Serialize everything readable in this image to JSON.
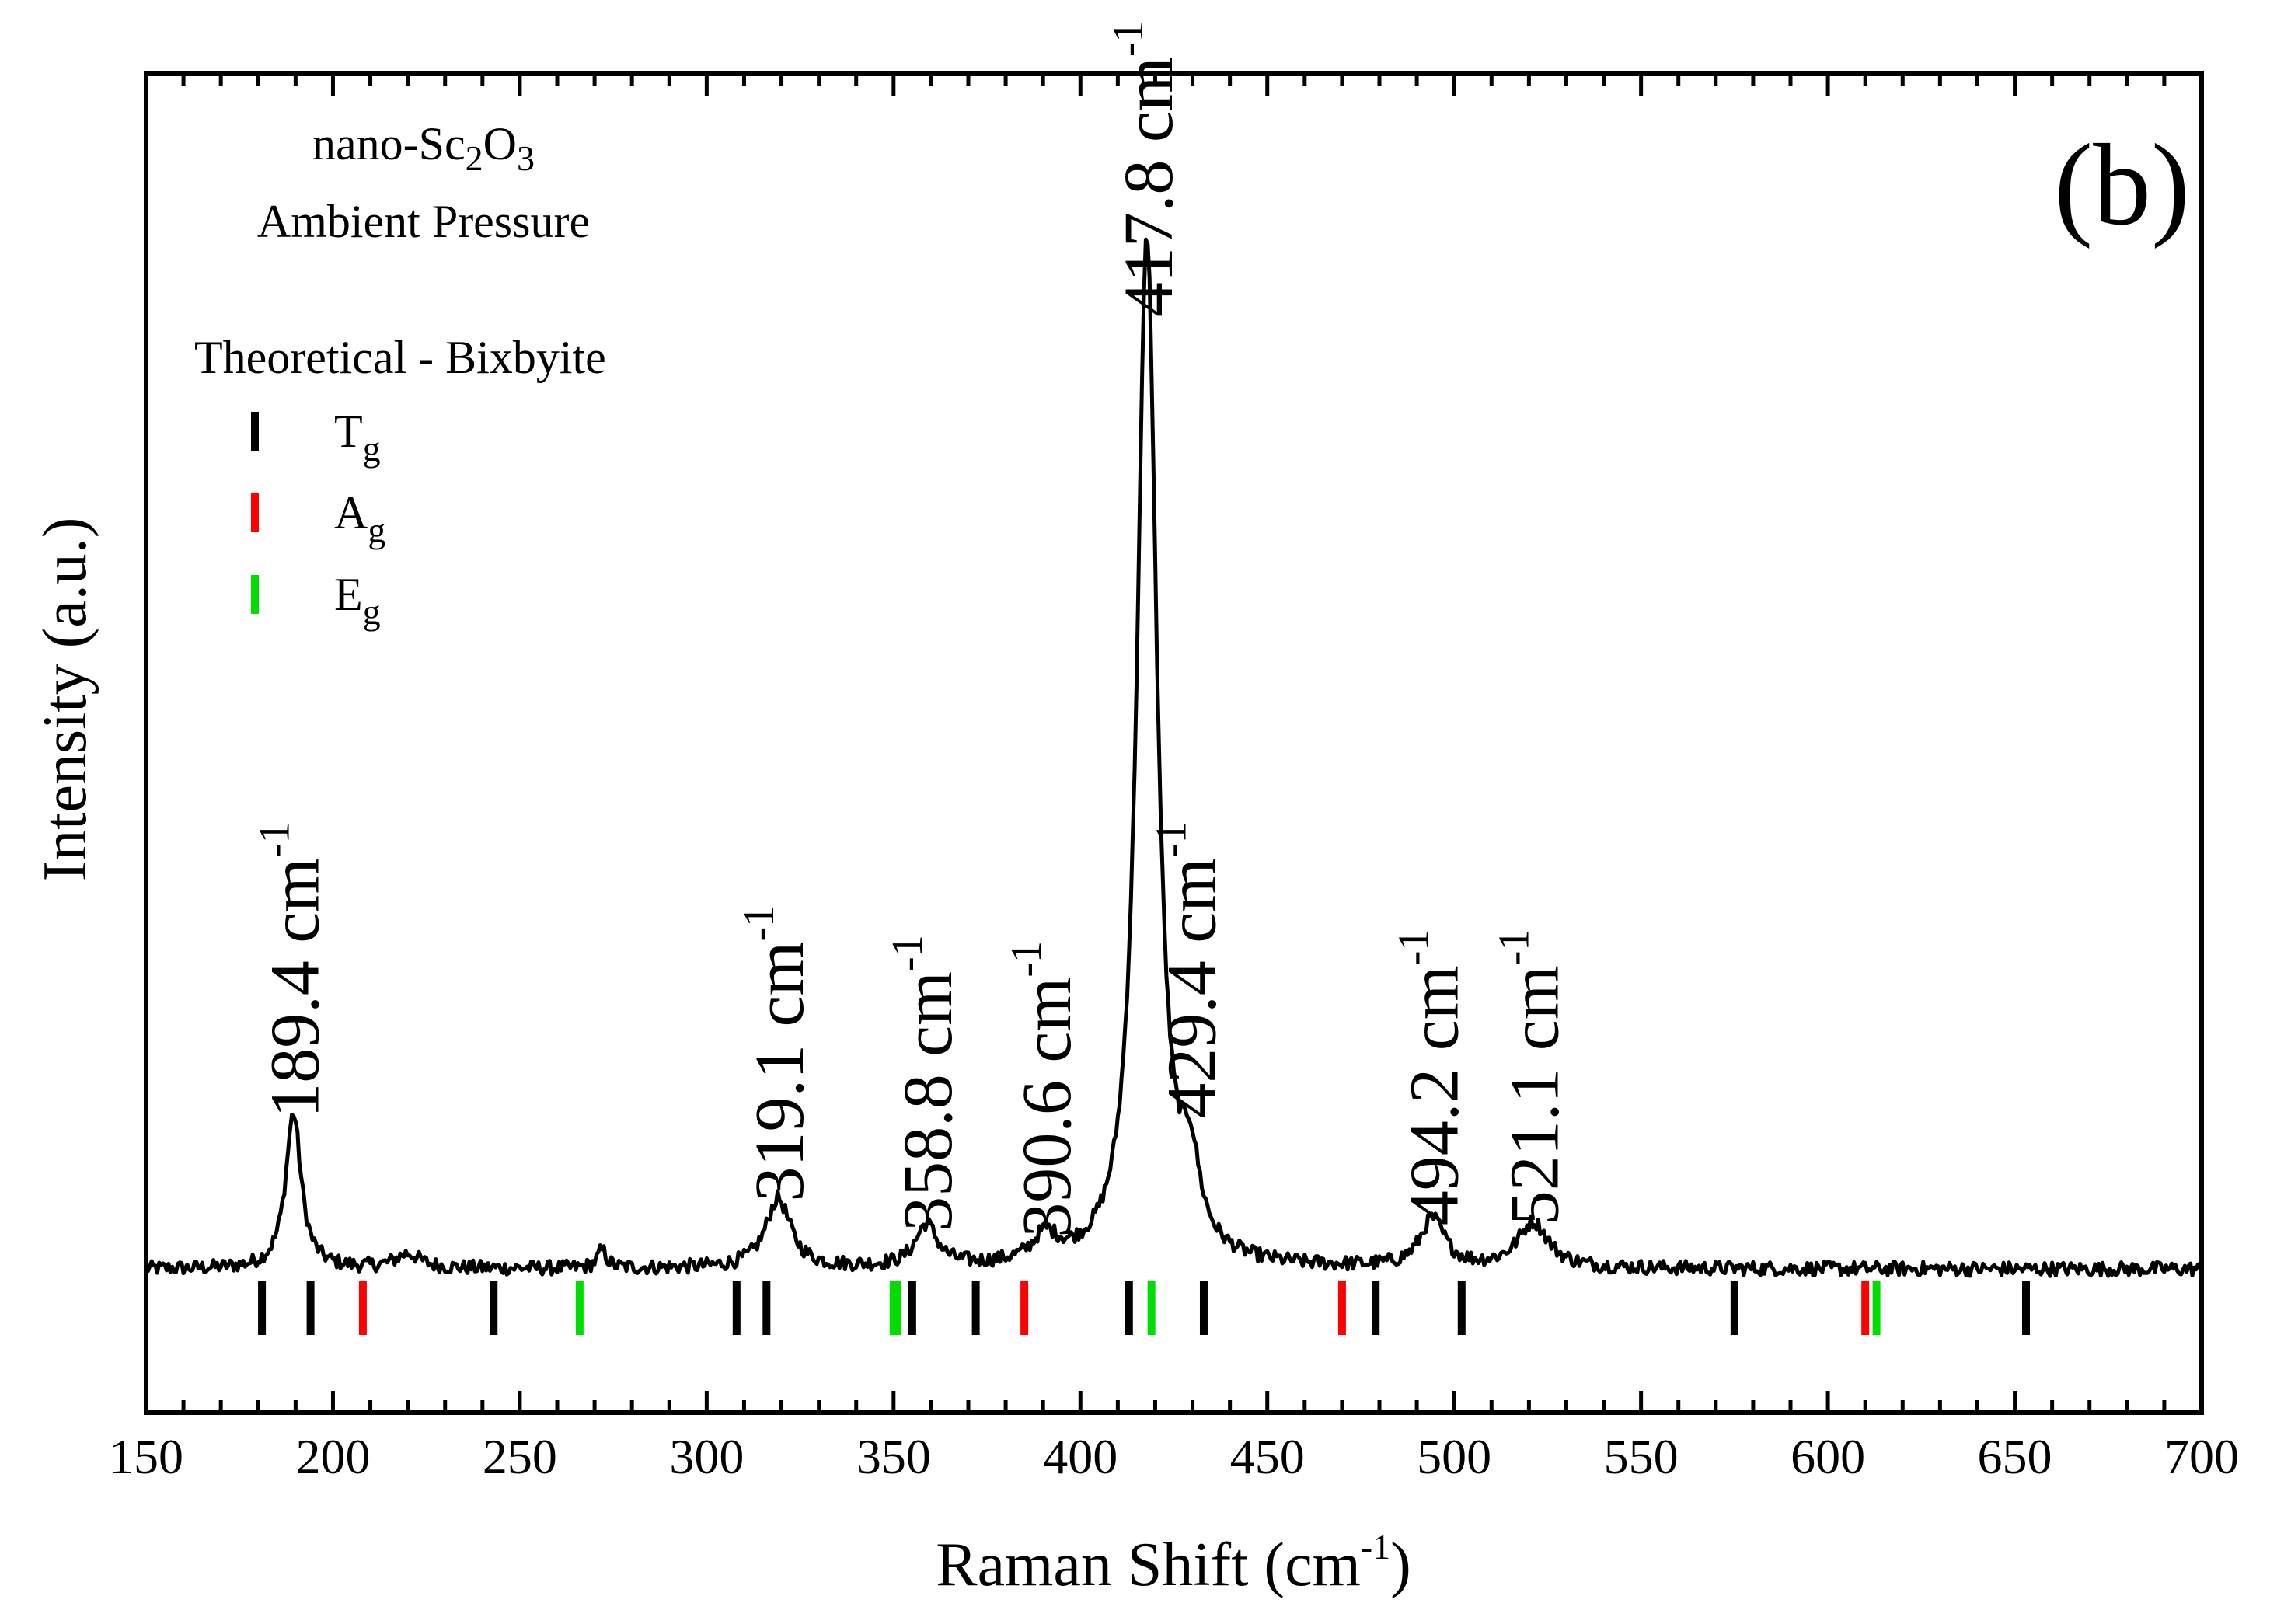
{
  "chart_data": {
    "type": "line",
    "panel_label": "(b)",
    "xlabel": {
      "text": "Raman Shift (cm",
      "sup": "-1",
      "close": ")"
    },
    "ylabel": "Intensity (a.u.)",
    "xlim": [
      150,
      700
    ],
    "ylim": [
      -0.12,
      1.0
    ],
    "x_ticks": [
      150,
      200,
      250,
      300,
      350,
      400,
      450,
      500,
      550,
      600,
      650,
      700
    ],
    "x_minor_step": 10,
    "sample": {
      "prefix": "nano-Sc",
      "sub1": "2",
      "mid": "O",
      "sub2": "3"
    },
    "condition": "Ambient Pressure",
    "legend_title": "Theoretical - Bixbyite",
    "legend": [
      {
        "base": "T",
        "sub": "g",
        "color": "#000000"
      },
      {
        "base": "A",
        "sub": "g",
        "color": "#ff0000"
      },
      {
        "base": "E",
        "sub": "g",
        "color": "#00dd00"
      }
    ],
    "spectrum": {
      "baseline": 0.0,
      "peaks": [
        {
          "center": 189.4,
          "height": 0.13,
          "width": 2.5
        },
        {
          "center": 220.0,
          "height": 0.012,
          "width": 4
        },
        {
          "center": 272.0,
          "height": 0.015,
          "width": 1.5
        },
        {
          "center": 319.1,
          "height": 0.058,
          "width": 4
        },
        {
          "center": 358.8,
          "height": 0.035,
          "width": 3.5
        },
        {
          "center": 390.6,
          "height": 0.022,
          "width": 4
        },
        {
          "center": 417.8,
          "height": 0.86,
          "width": 3.2
        },
        {
          "center": 429.4,
          "height": 0.065,
          "width": 3
        },
        {
          "center": 494.2,
          "height": 0.04,
          "width": 4
        },
        {
          "center": 521.1,
          "height": 0.038,
          "width": 5
        }
      ]
    },
    "theoretical_modes": [
      {
        "x": 181,
        "type": "Tg"
      },
      {
        "x": 194,
        "type": "Tg"
      },
      {
        "x": 208,
        "type": "Ag"
      },
      {
        "x": 243,
        "type": "Tg"
      },
      {
        "x": 266,
        "type": "Eg"
      },
      {
        "x": 308,
        "type": "Tg"
      },
      {
        "x": 316,
        "type": "Tg"
      },
      {
        "x": 350,
        "type": "Eg"
      },
      {
        "x": 351,
        "type": "Eg"
      },
      {
        "x": 355,
        "type": "Tg"
      },
      {
        "x": 372,
        "type": "Tg"
      },
      {
        "x": 385,
        "type": "Ag"
      },
      {
        "x": 413,
        "type": "Tg"
      },
      {
        "x": 419,
        "type": "Eg"
      },
      {
        "x": 433,
        "type": "Tg"
      },
      {
        "x": 470,
        "type": "Ag"
      },
      {
        "x": 479,
        "type": "Tg"
      },
      {
        "x": 502,
        "type": "Tg"
      },
      {
        "x": 575,
        "type": "Tg"
      },
      {
        "x": 610,
        "type": "Ag"
      },
      {
        "x": 613,
        "type": "Eg"
      },
      {
        "x": 653,
        "type": "Tg"
      }
    ],
    "mode_colors": {
      "Tg": "#000000",
      "Ag": "#ff0000",
      "Eg": "#00dd00"
    },
    "peak_labels": [
      {
        "x": 189.4,
        "y": 0.12,
        "value": "189.4 cm",
        "sup": "-1"
      },
      {
        "x": 319.1,
        "y": 0.05,
        "value": "319.1 cm",
        "sup": "-1"
      },
      {
        "x": 358.8,
        "y": 0.025,
        "value": "358.8 cm",
        "sup": "-1"
      },
      {
        "x": 390.6,
        "y": 0.02,
        "value": "390.6 cm",
        "sup": "-1"
      },
      {
        "x": 417.8,
        "y": 0.79,
        "value": "417.8 cm",
        "sup": "-1"
      },
      {
        "x": 429.4,
        "y": 0.12,
        "value": "429.4 cm",
        "sup": "-1"
      },
      {
        "x": 494.2,
        "y": 0.03,
        "value": "494.2 cm",
        "sup": "-1"
      },
      {
        "x": 521.1,
        "y": 0.03,
        "value": "521.1 cm",
        "sup": "-1"
      }
    ]
  }
}
